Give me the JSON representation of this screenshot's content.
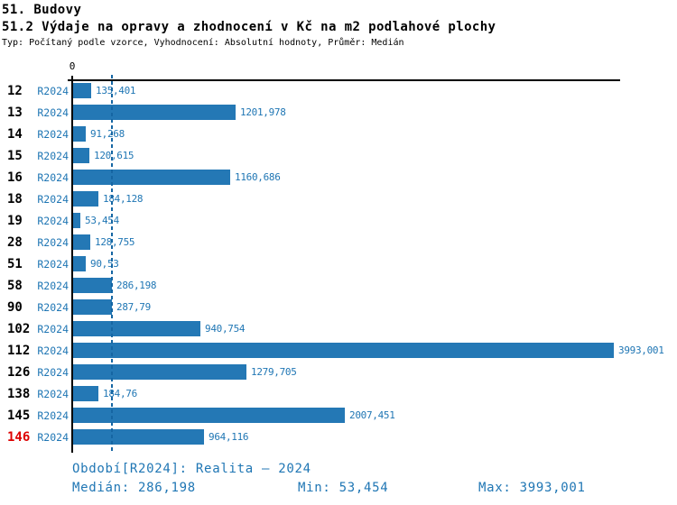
{
  "title": "51. Budovy",
  "subtitle": "51.2 Výdaje na opravy a zhodnocení v Kč na m2 podlahové plochy",
  "meta_line": "Typ: Počítaný podle vzorce, Vyhodnocení: Absolutní hodnoty, Průměr: Medián",
  "colors": {
    "bar": "#2478b5",
    "text_accent": "#1f76b4",
    "highlight_row": "#dd0000",
    "axis": "#000000",
    "median_line": "#1666a3"
  },
  "chart_data": {
    "type": "bar",
    "orientation": "horizontal",
    "title": "51. Budovy",
    "subtitle": "51.2 Výdaje na opravy a zhodnocení v Kč na m2 podlahové plochy",
    "series_label": "R2024",
    "axis_origin_label": "0",
    "xlim": [
      0,
      4000
    ],
    "grid": false,
    "median_value": 286.198,
    "highlight_category": "146",
    "categories": [
      "12",
      "13",
      "14",
      "15",
      "16",
      "18",
      "19",
      "28",
      "51",
      "58",
      "90",
      "102",
      "112",
      "126",
      "138",
      "145",
      "146"
    ],
    "values": [
      135.401,
      1201.978,
      91.268,
      120.615,
      1160.686,
      184.128,
      53.454,
      128.755,
      90.53,
      286.198,
      287.79,
      940.754,
      3993.001,
      1279.705,
      184.76,
      2007.451,
      964.116
    ],
    "value_labels": [
      "135,401",
      "1201,978",
      "91,268",
      "120,615",
      "1160,686",
      "184,128",
      "53,454",
      "128,755",
      "90,53",
      "286,198",
      "287,79",
      "940,754",
      "3993,001",
      "1279,705",
      "184,76",
      "2007,451",
      "964,116"
    ]
  },
  "footer": {
    "period": "Období[R2024]: Realita – 2024",
    "median": "Medián: 286,198",
    "min": "Min: 53,454",
    "max": "Max: 3993,001"
  }
}
